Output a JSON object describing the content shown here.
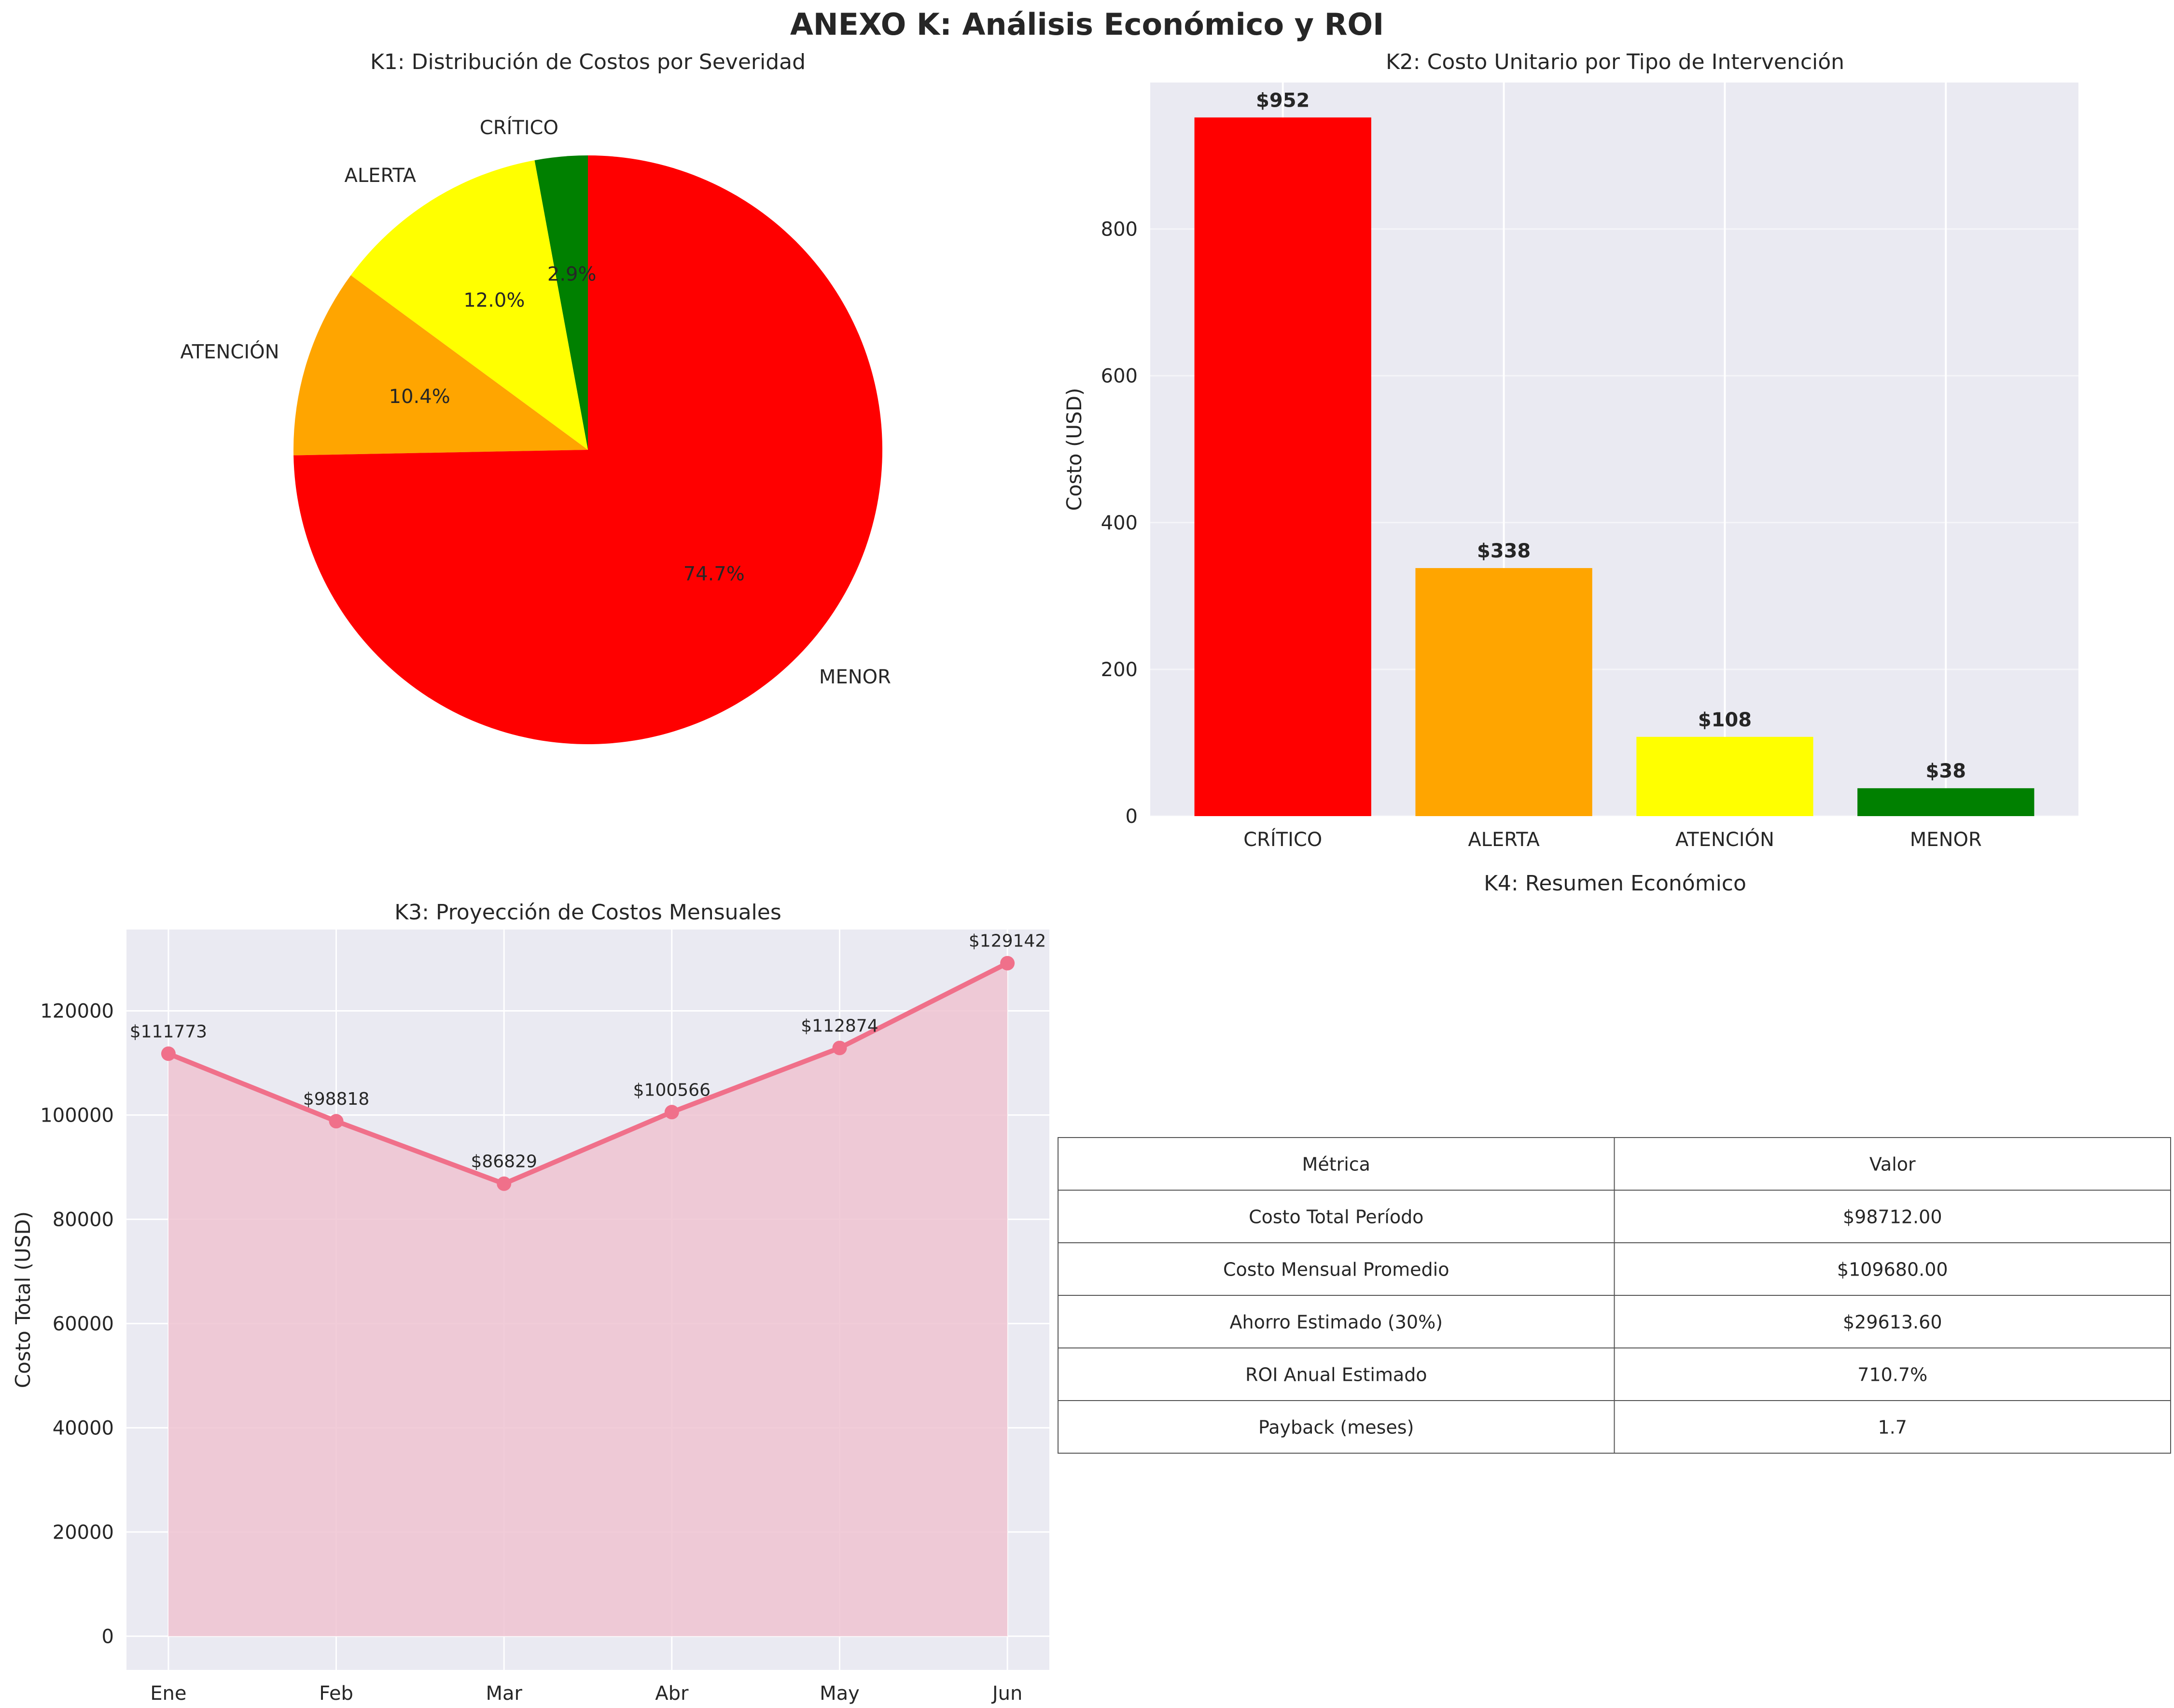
{
  "figure": {
    "title": "ANEXO K: Análisis Económico y ROI"
  },
  "colors": {
    "critico": "#ff0000",
    "alerta": "#ffa500",
    "atencion": "#ffff00",
    "menor": "#008000",
    "line": "#f0708a",
    "fill": "#eec3d1",
    "axes_bg": "#eaeaf2",
    "grid": "#ffffff"
  },
  "chart_data": [
    {
      "id": "k1",
      "type": "pie",
      "title": "K1: Distribución de Costos por Severidad",
      "labels": [
        "CRÍTICO",
        "ALERTA",
        "ATENCIÓN",
        "MENOR"
      ],
      "values": [
        2.9,
        12.0,
        10.4,
        74.7
      ],
      "pct_labels": [
        "2.9%",
        "12.0%",
        "10.4%",
        "74.7%"
      ],
      "colors": [
        "#008000",
        "#ffff00",
        "#ffa500",
        "#ff0000"
      ],
      "start_angle": 90,
      "direction": "counterclockwise"
    },
    {
      "id": "k2",
      "type": "bar",
      "title": "K2: Costo Unitario por Tipo de Intervención",
      "categories": [
        "CRÍTICO",
        "ALERTA",
        "ATENCIÓN",
        "MENOR"
      ],
      "values": [
        952,
        338,
        108,
        38
      ],
      "value_labels": [
        "$952",
        "$338",
        "$108",
        "$38"
      ],
      "colors": [
        "#ff0000",
        "#ffa500",
        "#ffff00",
        "#008000"
      ],
      "xlabel": "",
      "ylabel": "Costo (USD)",
      "ylim": [
        0,
        999.6
      ],
      "yticks": [
        0,
        200,
        400,
        600,
        800
      ],
      "grid": true
    },
    {
      "id": "k3",
      "type": "line",
      "title": "K3: Proyección de Costos Mensuales",
      "x": [
        "Ene",
        "Feb",
        "Mar",
        "Abr",
        "May",
        "Jun"
      ],
      "values": [
        111773,
        98818,
        86829,
        100566,
        112874,
        129142
      ],
      "value_labels": [
        "$111773",
        "$98818",
        "$86829",
        "$100566",
        "$112874",
        "$129142"
      ],
      "xlabel": "",
      "ylabel": "Costo Total (USD)",
      "ylim": [
        -6457,
        135599
      ],
      "yticks": [
        0,
        20000,
        40000,
        60000,
        80000,
        100000,
        120000
      ],
      "filled_area": true,
      "grid": true
    },
    {
      "id": "k4",
      "type": "table",
      "title": "K4: Resumen Económico",
      "columns": [
        "Métrica",
        "Valor"
      ],
      "rows": [
        [
          "Costo Total Período",
          "$98712.00"
        ],
        [
          "Costo Mensual Promedio",
          "$109680.00"
        ],
        [
          "Ahorro Estimado (30%)",
          "$29613.60"
        ],
        [
          "ROI Anual Estimado",
          "710.7%"
        ],
        [
          "Payback (meses)",
          "1.7"
        ]
      ]
    }
  ]
}
